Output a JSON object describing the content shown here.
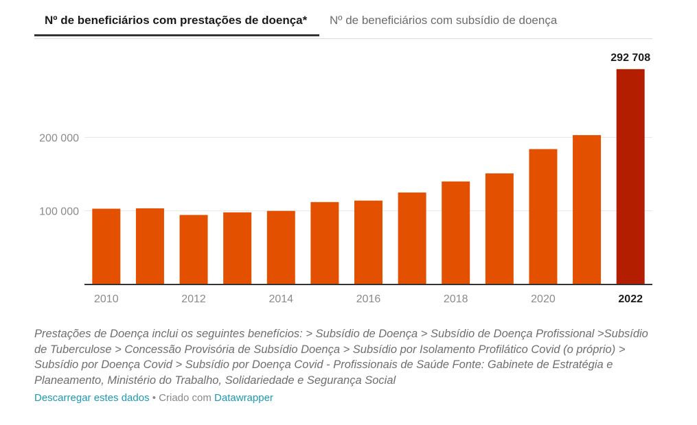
{
  "tabs": [
    {
      "label": "Nº de beneficiários com prestações de doença*",
      "active": true
    },
    {
      "label": "Nº de beneficiários com subsídio de doença",
      "active": false
    }
  ],
  "chart_data": {
    "type": "bar",
    "title": "Nº de beneficiários com prestações de doença*",
    "categories": [
      "2010",
      "2011",
      "2012",
      "2013",
      "2014",
      "2015",
      "2016",
      "2017",
      "2018",
      "2019",
      "2020",
      "2021",
      "2022"
    ],
    "values": [
      103000,
      103500,
      94500,
      98000,
      100000,
      112000,
      114000,
      125000,
      140000,
      151000,
      184000,
      203000,
      292708
    ],
    "x_tick_labels": [
      "2010",
      "2012",
      "2014",
      "2016",
      "2018",
      "2020",
      "2022"
    ],
    "y_ticks": [
      100000,
      200000
    ],
    "y_tick_labels": [
      "100 000",
      "200 000"
    ],
    "ylim": [
      0,
      300000
    ],
    "highlight_category": "2022",
    "highlight_value_label": "292 708",
    "xlabel": "",
    "ylabel": "",
    "colors": {
      "bar": "#e35000",
      "highlight": "#b41e00",
      "grid": "#e6e6e6",
      "axis": "#333333"
    }
  },
  "notes": "Prestações de Doença inclui os seguintes benefícios: > Subsídio de Doença > Subsídio de Doença Profissional >Subsídio de Tuberculose > Concessão Provisória de Subsídio Doença > Subsídio por Isolamento Profilático Covid (o próprio) > Subsídio por Doença Covid > Subsídio por Doença Covid - Profissionais de Saúde Fonte: Gabinete de Estratégia e Planeamento, Ministério do Trabalho, Solidariedade e Segurança Social",
  "footer": {
    "download_link": "Descarregar estes dados",
    "separator": " • Criado com ",
    "tool_link": "Datawrapper"
  }
}
